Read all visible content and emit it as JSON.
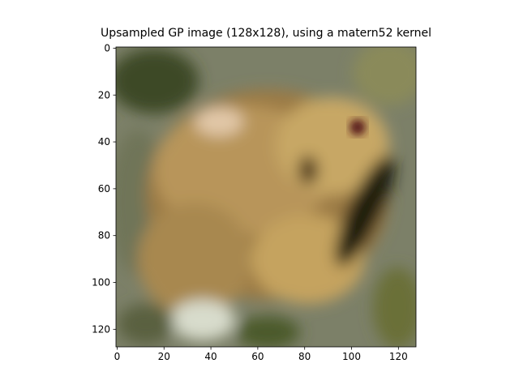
{
  "chart_data": {
    "type": "image",
    "title": "Upsampled GP image (128x128), using a matern52 kernel",
    "xlim": [
      -0.5,
      127.5
    ],
    "ylim": [
      127.5,
      -0.5
    ],
    "xticks": [
      0,
      20,
      40,
      60,
      80,
      100,
      120
    ],
    "yticks": [
      0,
      20,
      40,
      60,
      80,
      100,
      120
    ]
  }
}
